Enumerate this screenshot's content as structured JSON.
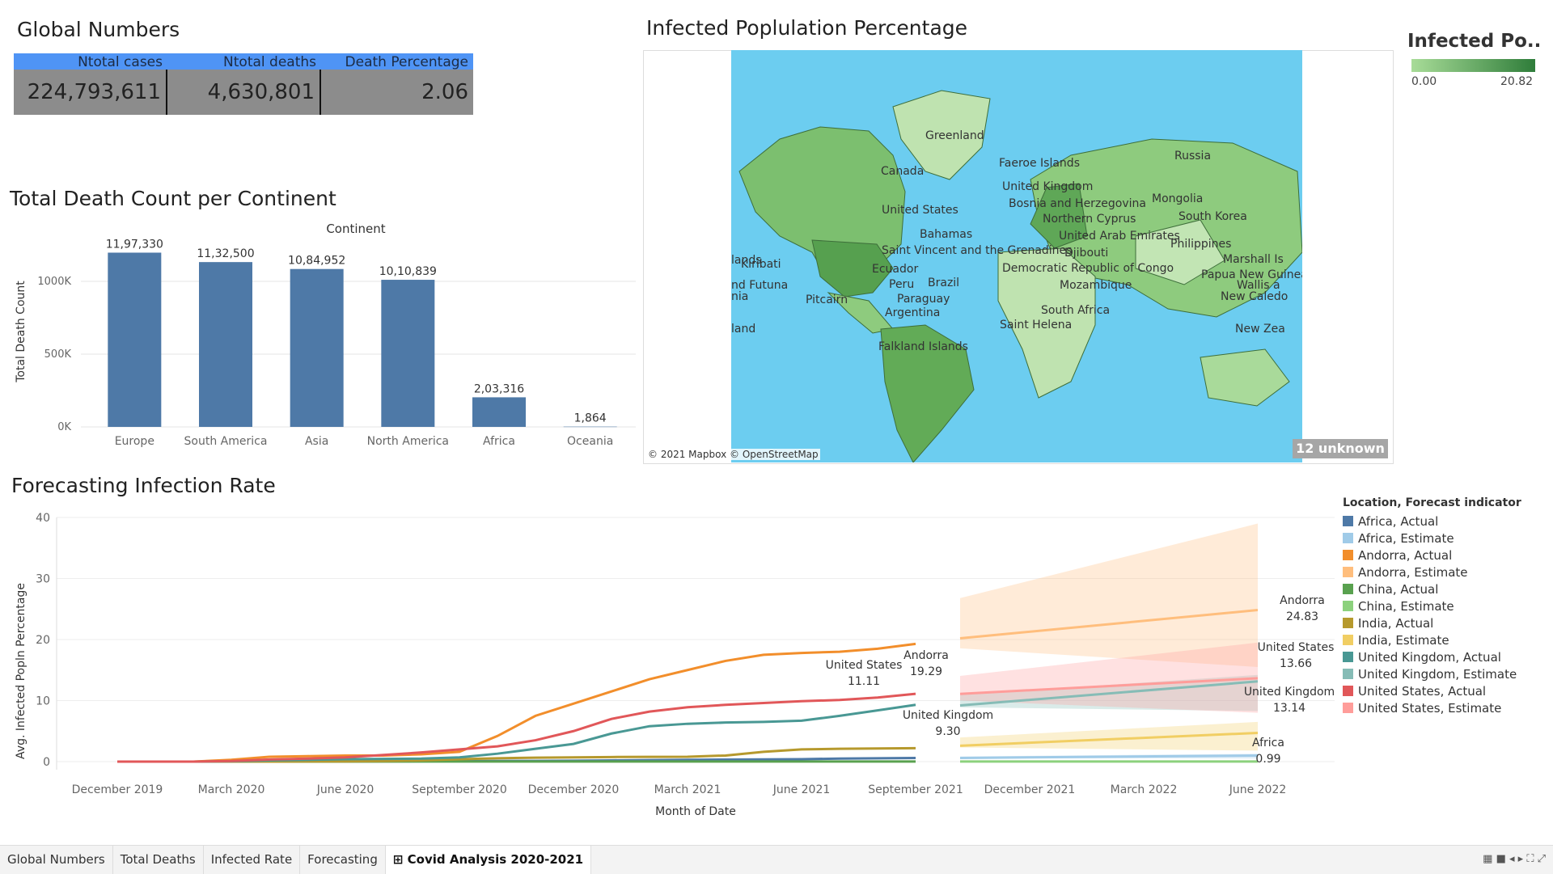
{
  "global_numbers": {
    "title": "Global Numbers",
    "headers": [
      "Ntotal cases",
      "Ntotal deaths",
      "Death Percentage"
    ],
    "values": [
      "224,793,611",
      "4,630,801",
      "2.06"
    ],
    "header_color": "#4f94f5"
  },
  "death_chart": {
    "title": "Total Death Count per Continent",
    "chart_data": {
      "type": "bar",
      "title": "Continent",
      "ylabel": "Total Death Count",
      "categories": [
        "Europe",
        "South America",
        "Asia",
        "North America",
        "Africa",
        "Oceania"
      ],
      "values": [
        1197330,
        1132500,
        1084952,
        1010839,
        203316,
        1864
      ],
      "data_labels": [
        "11,97,330",
        "11,32,500",
        "10,84,952",
        "10,10,839",
        "2,03,316",
        "1,864"
      ],
      "yticks": [
        "0K",
        "500K",
        "1000K"
      ],
      "ytick_values": [
        0,
        500000,
        1000000
      ],
      "ylim": [
        0,
        1300000
      ],
      "color": "#4e79a7"
    }
  },
  "map": {
    "title": "Infected Poplulation Percentage",
    "labels": [
      "Greenland",
      "Faeroe Islands",
      "Russia",
      "Canada",
      "United Kingdom",
      "Bosnia and Herzegovina",
      "Mongolia",
      "United States",
      "Northern Cyprus",
      "South Korea",
      "Bahamas",
      "United Arab Emirates",
      "Philippines",
      "Saint Vincent and the Grenadines",
      "Djibouti",
      "Kiribati",
      "Marshall Is",
      "Ecuador",
      "Democratic Republic of Congo",
      "Papua New Guinea",
      "nd Futuna",
      "Peru",
      "Brazil",
      "Wallis a",
      "Pitcairn",
      "Mozambique",
      "New Caledo",
      "Paraguay",
      "Argentina",
      "South Africa",
      "Saint Helena",
      "land",
      "New Zea",
      "Falkland Islands",
      "lands",
      "nia"
    ],
    "copyright": "© 2021 Mapbox © OpenStreetMap",
    "unknown": "12 unknown",
    "legend": {
      "title": "Infected Po..",
      "min": "0.00",
      "max": "20.82"
    },
    "ocean_color": "#6ccdf0"
  },
  "forecast_chart": {
    "title": "Forecasting Infection Rate",
    "chart_data": {
      "type": "line",
      "xlabel": "Month of Date",
      "ylabel": "Avg. Infected Popln Percentage",
      "x_ticks": [
        "December 2019",
        "March 2020",
        "June 2020",
        "September 2020",
        "December 2020",
        "March 2021",
        "June 2021",
        "September 2021",
        "December 2021",
        "March 2022",
        "June 2022"
      ],
      "yticks": [
        0,
        10,
        20,
        30,
        40
      ],
      "ylim": [
        0,
        40
      ],
      "actual_months": [
        "2019-12",
        "2020-01",
        "2020-02",
        "2020-03",
        "2020-04",
        "2020-05",
        "2020-06",
        "2020-07",
        "2020-08",
        "2020-09",
        "2020-10",
        "2020-11",
        "2020-12",
        "2021-01",
        "2021-02",
        "2021-03",
        "2021-04",
        "2021-05",
        "2021-06",
        "2021-07",
        "2021-08",
        "2021-09"
      ],
      "estimate_months": [
        "2021-09",
        "2022-06"
      ],
      "series": [
        {
          "name": "Africa, Actual",
          "color": "#4e79a7",
          "values": [
            0,
            0,
            0,
            0,
            0,
            0,
            0.02,
            0.04,
            0.06,
            0.08,
            0.1,
            0.12,
            0.15,
            0.2,
            0.25,
            0.3,
            0.33,
            0.36,
            0.4,
            0.5,
            0.55,
            0.6
          ]
        },
        {
          "name": "Africa, Estimate",
          "color": "#a0cbe8",
          "values": [
            0.6,
            0.99
          ],
          "band": [
            0.5,
            1.3
          ]
        },
        {
          "name": "Andorra, Actual",
          "color": "#f28e2b",
          "values": [
            0,
            0,
            0,
            0.3,
            0.8,
            0.9,
            1.0,
            1.0,
            1.2,
            1.6,
            4.2,
            7.5,
            9.5,
            11.5,
            13.5,
            15,
            16.5,
            17.5,
            17.8,
            18,
            18.5,
            19.29
          ]
        },
        {
          "name": "Andorra, Estimate",
          "color": "#ffbe7d",
          "values": [
            20.2,
            24.83
          ],
          "band": [
            15.5,
            39
          ]
        },
        {
          "name": "China, Actual",
          "color": "#59a14f",
          "values": [
            0,
            0,
            0,
            0.01,
            0.01,
            0.01,
            0.01,
            0.01,
            0.01,
            0.01,
            0.01,
            0.01,
            0.01,
            0.01,
            0.01,
            0.01,
            0.01,
            0.01,
            0.01,
            0.01,
            0.01,
            0.01
          ]
        },
        {
          "name": "China, Estimate",
          "color": "#8cd17d",
          "values": [
            0.01,
            0.01
          ],
          "band": [
            0,
            0.2
          ]
        },
        {
          "name": "India, Actual",
          "color": "#b6992d",
          "values": [
            0,
            0,
            0,
            0,
            0,
            0.02,
            0.04,
            0.1,
            0.2,
            0.4,
            0.55,
            0.65,
            0.7,
            0.75,
            0.78,
            0.8,
            1.0,
            1.6,
            2.0,
            2.1,
            2.15,
            2.2
          ]
        },
        {
          "name": "India, Estimate",
          "color": "#f1ce63",
          "values": [
            2.6,
            4.7
          ],
          "band": [
            1.8,
            6.5
          ]
        },
        {
          "name": "United Kingdom, Actual",
          "color": "#499894",
          "values": [
            0,
            0,
            0,
            0.05,
            0.2,
            0.3,
            0.4,
            0.45,
            0.5,
            0.7,
            1.3,
            2.1,
            2.9,
            4.6,
            5.8,
            6.2,
            6.4,
            6.5,
            6.7,
            7.5,
            8.4,
            9.3
          ]
        },
        {
          "name": "United Kingdom, Estimate",
          "color": "#86bcb6",
          "values": [
            9.2,
            13.14
          ],
          "band": [
            8.3,
            14.2
          ]
        },
        {
          "name": "United States, Actual",
          "color": "#e15759",
          "values": [
            0,
            0,
            0,
            0.1,
            0.35,
            0.5,
            0.7,
            1.1,
            1.5,
            2.0,
            2.5,
            3.5,
            5.0,
            7.0,
            8.2,
            8.9,
            9.3,
            9.6,
            9.9,
            10.1,
            10.5,
            11.11
          ]
        },
        {
          "name": "United States, Estimate",
          "color": "#ff9d9a",
          "values": [
            11.1,
            13.66
          ],
          "band": [
            8.0,
            19.5
          ]
        }
      ],
      "annotations": [
        {
          "text": "Andorra",
          "value": "19.29"
        },
        {
          "text": "United States",
          "value": "11.11"
        },
        {
          "text": "United Kingdom",
          "value": "9.30"
        },
        {
          "text": "Andorra",
          "value": "24.83"
        },
        {
          "text": "United States",
          "value": "13.66"
        },
        {
          "text": "United Kingdom",
          "value": "13.14"
        },
        {
          "text": "Africa",
          "value": "0.99"
        }
      ],
      "legend_title": "Location, Forecast indicator"
    }
  },
  "tabs": [
    "Global Numbers",
    "Total Deaths",
    "Infected Rate",
    "Forecasting",
    "Covid Analysis 2020-2021"
  ],
  "active_tab": "Covid Analysis 2020-2021"
}
